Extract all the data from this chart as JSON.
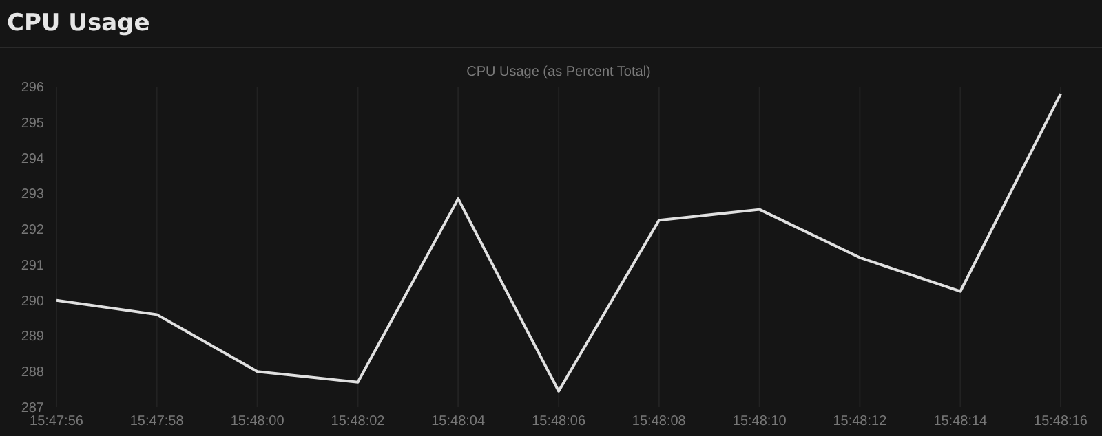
{
  "chart_data": {
    "type": "line",
    "title": "CPU Usage",
    "subtitle": "CPU Usage (as Percent Total)",
    "x": [
      15.798889,
      15.799444,
      15.8,
      15.800556,
      15.801111,
      15.801667,
      15.802222,
      15.802778,
      15.803333,
      15.803889,
      15.804444
    ],
    "series": [
      {
        "color": "#e0e0e0",
        "values": [
          290.0,
          289.6,
          288.0,
          287.7,
          292.85,
          287.45,
          292.25,
          292.55,
          291.2,
          290.25,
          295.8
        ]
      }
    ],
    "xlim": [
      15.798889,
      15.804444
    ],
    "xticks": [
      {
        "value": 15.798889,
        "label": "15:47:56"
      },
      {
        "value": 15.799444,
        "label": "15:47:58"
      },
      {
        "value": 15.8,
        "label": "15:48:00"
      },
      {
        "value": 15.800556,
        "label": "15:48:02"
      },
      {
        "value": 15.801111,
        "label": "15:48:04"
      },
      {
        "value": 15.801667,
        "label": "15:48:06"
      },
      {
        "value": 15.802222,
        "label": "15:48:08"
      },
      {
        "value": 15.802778,
        "label": "15:48:10"
      },
      {
        "value": 15.803333,
        "label": "15:48:12"
      },
      {
        "value": 15.803889,
        "label": "15:48:14"
      },
      {
        "value": 15.804444,
        "label": "15:48:16"
      }
    ],
    "ylim": [
      287,
      296
    ],
    "yticks": [
      287,
      288,
      289,
      290,
      291,
      292,
      293,
      294,
      295,
      296
    ],
    "grid": "x",
    "marker": "none",
    "line_style": "solid"
  }
}
